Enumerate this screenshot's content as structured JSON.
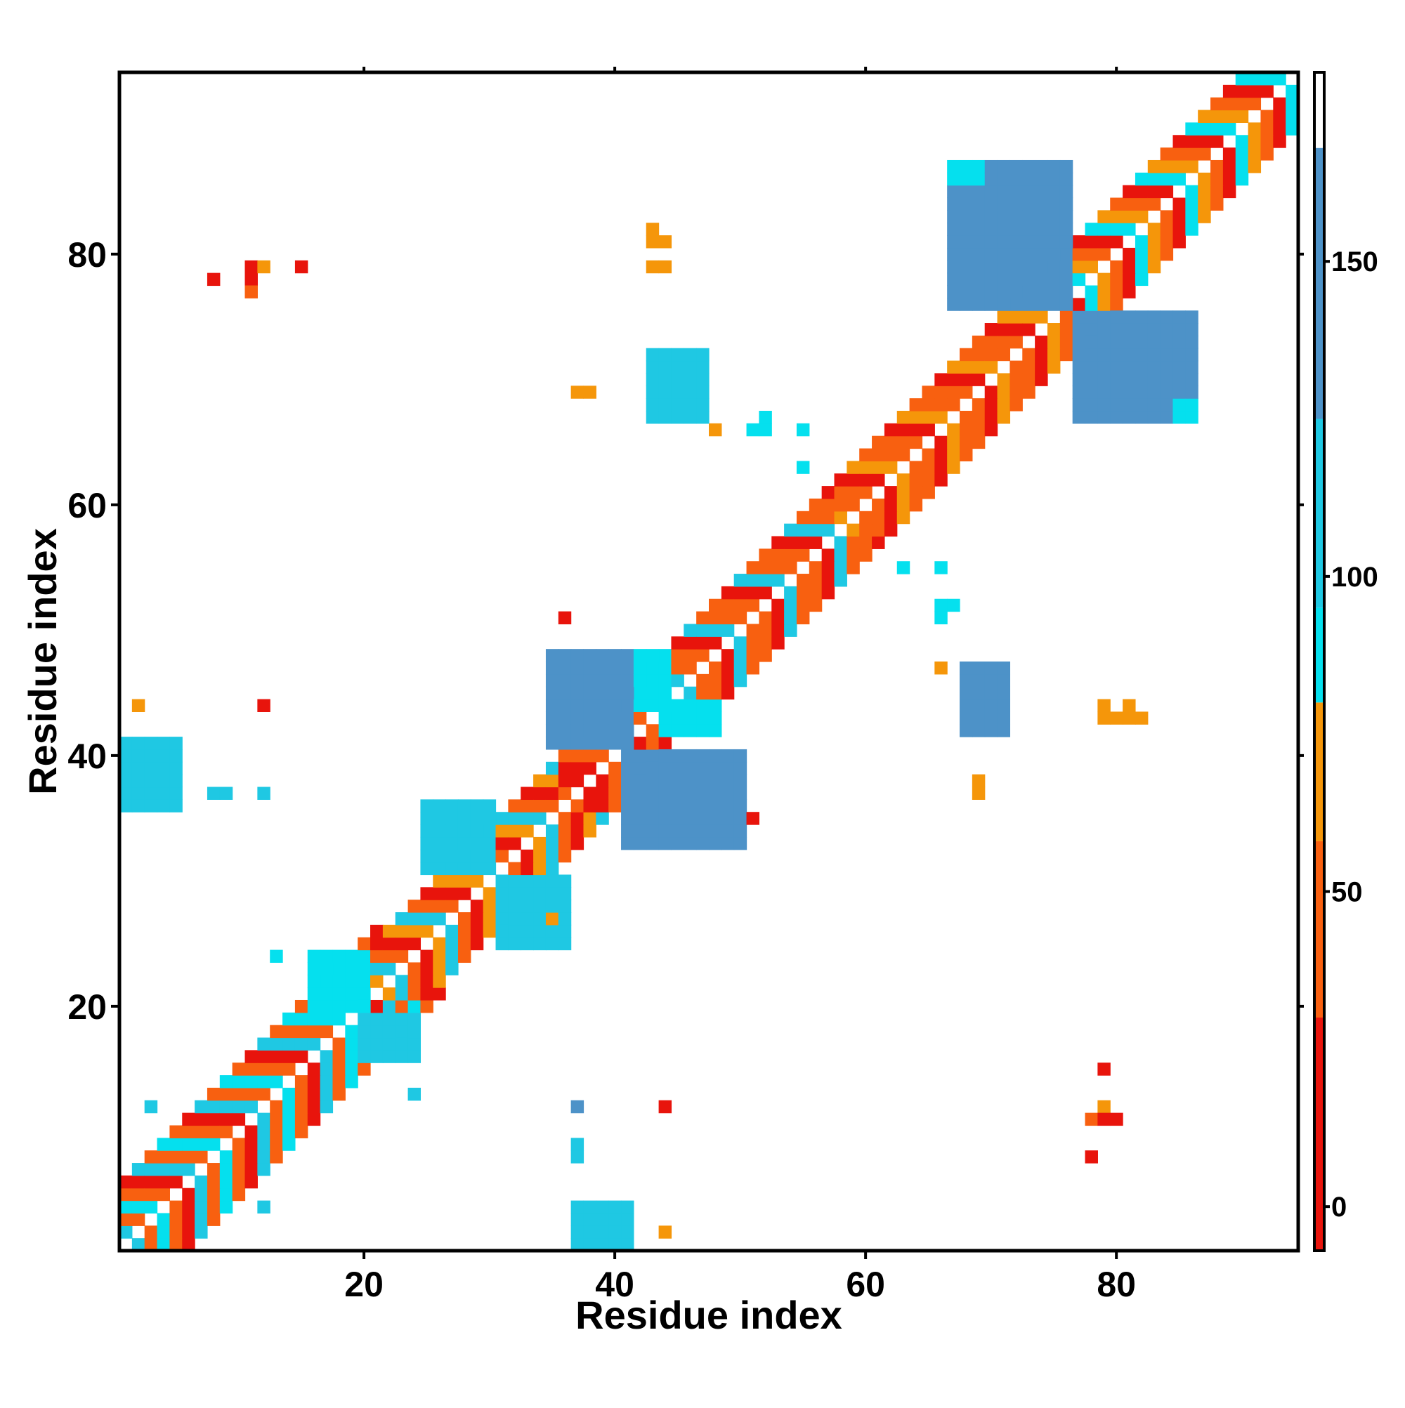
{
  "chart_data": {
    "type": "heatmap",
    "title": "",
    "xlabel": "Residue index",
    "ylabel": "Residue index",
    "xlim": [
      0.5,
      94.5
    ],
    "ylim": [
      0.5,
      94.5
    ],
    "x_ticks": [
      20,
      40,
      60,
      80
    ],
    "y_ticks": [
      20,
      40,
      60,
      80
    ],
    "colorbar": {
      "range": [
        -7,
        180
      ],
      "ticks": [
        0,
        50,
        100,
        150
      ],
      "bands": [
        {
          "from": -7,
          "to": 30,
          "color": "#e8140c"
        },
        {
          "from": 30,
          "to": 58,
          "color": "#f86010"
        },
        {
          "from": 58,
          "to": 80,
          "color": "#f5960a"
        },
        {
          "from": 80,
          "to": 95,
          "color": "#05e0ee"
        },
        {
          "from": 95,
          "to": 125,
          "color": "#1fc8e3"
        },
        {
          "from": 125,
          "to": 168,
          "color": "#4d92c8"
        },
        {
          "from": 168,
          "to": 180,
          "color": "#ffffff"
        }
      ]
    },
    "legend": "right",
    "grid": false,
    "diagonal_segments": [
      {
        "from": 1,
        "to": 21,
        "width": 5,
        "pattern": [
          "#f86010",
          "#e8140c",
          "#1fc8e3",
          "#f86010",
          "#05e0ee"
        ]
      },
      {
        "from": 21,
        "to": 36,
        "width": 4,
        "pattern": [
          "#f86010",
          "#e8140c",
          "#f5960a",
          "#1fc8e3"
        ]
      },
      {
        "from": 36,
        "to": 43,
        "width": 3,
        "pattern": [
          "#e8140c",
          "#f86010",
          "#e8140c"
        ]
      },
      {
        "from": 43,
        "to": 58,
        "width": 4,
        "pattern": [
          "#f86010",
          "#e8140c",
          "#1fc8e3",
          "#f86010"
        ]
      },
      {
        "from": 58,
        "to": 75,
        "width": 4,
        "pattern": [
          "#f86010",
          "#f86010",
          "#e8140c",
          "#f5960a"
        ]
      },
      {
        "from": 75,
        "to": 95,
        "width": 4,
        "pattern": [
          "#f86010",
          "#e8140c",
          "#05e0ee",
          "#f5960a"
        ]
      }
    ],
    "cross_patches": [
      {
        "x": [
          35,
          41
        ],
        "y": [
          41,
          48
        ],
        "color": "#4d92c8"
      },
      {
        "x": [
          41,
          50
        ],
        "y": [
          33,
          40
        ],
        "color": "#4d92c8"
      },
      {
        "x": [
          67,
          76
        ],
        "y": [
          76,
          87
        ],
        "color": "#4d92c8"
      },
      {
        "x": [
          77,
          86
        ],
        "y": [
          67,
          75
        ],
        "color": "#4d92c8"
      },
      {
        "x": [
          43,
          47
        ],
        "y": [
          67,
          72
        ],
        "color": "#1fc8e3"
      },
      {
        "x": [
          68,
          71
        ],
        "y": [
          42,
          47
        ],
        "color": "#4d92c8"
      },
      {
        "x": [
          1,
          5
        ],
        "y": [
          36,
          41
        ],
        "color": "#1fc8e3"
      },
      {
        "x": [
          37,
          41
        ],
        "y": [
          1,
          4
        ],
        "color": "#1fc8e3"
      },
      {
        "x": [
          25,
          30
        ],
        "y": [
          31,
          36
        ],
        "color": "#1fc8e3"
      },
      {
        "x": [
          31,
          36
        ],
        "y": [
          25,
          30
        ],
        "color": "#1fc8e3"
      },
      {
        "x": [
          16,
          20
        ],
        "y": [
          20,
          24
        ],
        "color": "#05e0ee"
      },
      {
        "x": [
          20,
          24
        ],
        "y": [
          16,
          19
        ],
        "color": "#1fc8e3"
      },
      {
        "x": [
          42,
          44
        ],
        "y": [
          44,
          48
        ],
        "color": "#05e0ee"
      },
      {
        "x": [
          44,
          48
        ],
        "y": [
          42,
          44
        ],
        "color": "#05e0ee"
      },
      {
        "x": [
          67,
          69
        ],
        "y": [
          86,
          87
        ],
        "color": "#05e0ee"
      },
      {
        "x": [
          85,
          86
        ],
        "y": [
          67,
          68
        ],
        "color": "#05e0ee"
      }
    ],
    "isolated_cells": [
      {
        "x": 8,
        "y": 78,
        "color": "#e8140c"
      },
      {
        "x": 11,
        "y": 79,
        "color": "#e8140c"
      },
      {
        "x": 11,
        "y": 78,
        "color": "#e8140c"
      },
      {
        "x": 11,
        "y": 77,
        "color": "#f86010"
      },
      {
        "x": 12,
        "y": 79,
        "color": "#f5960a"
      },
      {
        "x": 15,
        "y": 79,
        "color": "#e8140c"
      },
      {
        "x": 43,
        "y": 82,
        "color": "#f5960a"
      },
      {
        "x": 43,
        "y": 81,
        "color": "#f5960a"
      },
      {
        "x": 43,
        "y": 79,
        "color": "#f5960a"
      },
      {
        "x": 44,
        "y": 79,
        "color": "#f5960a"
      },
      {
        "x": 44,
        "y": 81,
        "color": "#f5960a"
      },
      {
        "x": 37,
        "y": 69,
        "color": "#f5960a"
      },
      {
        "x": 38,
        "y": 69,
        "color": "#f5960a"
      },
      {
        "x": 48,
        "y": 66,
        "color": "#f5960a"
      },
      {
        "x": 51,
        "y": 66,
        "color": "#05e0ee"
      },
      {
        "x": 52,
        "y": 66,
        "color": "#05e0ee"
      },
      {
        "x": 52,
        "y": 67,
        "color": "#05e0ee"
      },
      {
        "x": 55,
        "y": 66,
        "color": "#05e0ee"
      },
      {
        "x": 55,
        "y": 63,
        "color": "#05e0ee"
      },
      {
        "x": 63,
        "y": 55,
        "color": "#05e0ee"
      },
      {
        "x": 66,
        "y": 55,
        "color": "#05e0ee"
      },
      {
        "x": 66,
        "y": 52,
        "color": "#05e0ee"
      },
      {
        "x": 67,
        "y": 52,
        "color": "#05e0ee"
      },
      {
        "x": 66,
        "y": 51,
        "color": "#05e0ee"
      },
      {
        "x": 36,
        "y": 51,
        "color": "#e8140c"
      },
      {
        "x": 66,
        "y": 47,
        "color": "#f5960a"
      },
      {
        "x": 2,
        "y": 44,
        "color": "#f5960a"
      },
      {
        "x": 12,
        "y": 44,
        "color": "#e8140c"
      },
      {
        "x": 8,
        "y": 37,
        "color": "#1fc8e3"
      },
      {
        "x": 9,
        "y": 37,
        "color": "#1fc8e3"
      },
      {
        "x": 12,
        "y": 37,
        "color": "#1fc8e3"
      },
      {
        "x": 51,
        "y": 35,
        "color": "#e8140c"
      },
      {
        "x": 69,
        "y": 38,
        "color": "#f5960a"
      },
      {
        "x": 69,
        "y": 37,
        "color": "#f5960a"
      },
      {
        "x": 79,
        "y": 44,
        "color": "#f5960a"
      },
      {
        "x": 79,
        "y": 43,
        "color": "#f5960a"
      },
      {
        "x": 80,
        "y": 43,
        "color": "#f5960a"
      },
      {
        "x": 81,
        "y": 44,
        "color": "#f5960a"
      },
      {
        "x": 81,
        "y": 43,
        "color": "#f5960a"
      },
      {
        "x": 82,
        "y": 43,
        "color": "#f5960a"
      },
      {
        "x": 36,
        "y": 28,
        "color": "#1fc8e3"
      },
      {
        "x": 35,
        "y": 27,
        "color": "#f5960a"
      },
      {
        "x": 13,
        "y": 24,
        "color": "#05e0ee"
      },
      {
        "x": 24,
        "y": 13,
        "color": "#1fc8e3"
      },
      {
        "x": 79,
        "y": 15,
        "color": "#e8140c"
      },
      {
        "x": 79,
        "y": 12,
        "color": "#f5960a"
      },
      {
        "x": 78,
        "y": 11,
        "color": "#f86010"
      },
      {
        "x": 79,
        "y": 11,
        "color": "#e8140c"
      },
      {
        "x": 80,
        "y": 11,
        "color": "#e8140c"
      },
      {
        "x": 78,
        "y": 8,
        "color": "#e8140c"
      },
      {
        "x": 44,
        "y": 12,
        "color": "#e8140c"
      },
      {
        "x": 37,
        "y": 12,
        "color": "#4d92c8"
      },
      {
        "x": 37,
        "y": 9,
        "color": "#1fc8e3"
      },
      {
        "x": 37,
        "y": 8,
        "color": "#1fc8e3"
      },
      {
        "x": 44,
        "y": 2,
        "color": "#f5960a"
      },
      {
        "x": 3,
        "y": 12,
        "color": "#1fc8e3"
      },
      {
        "x": 12,
        "y": 4,
        "color": "#1fc8e3"
      }
    ]
  }
}
